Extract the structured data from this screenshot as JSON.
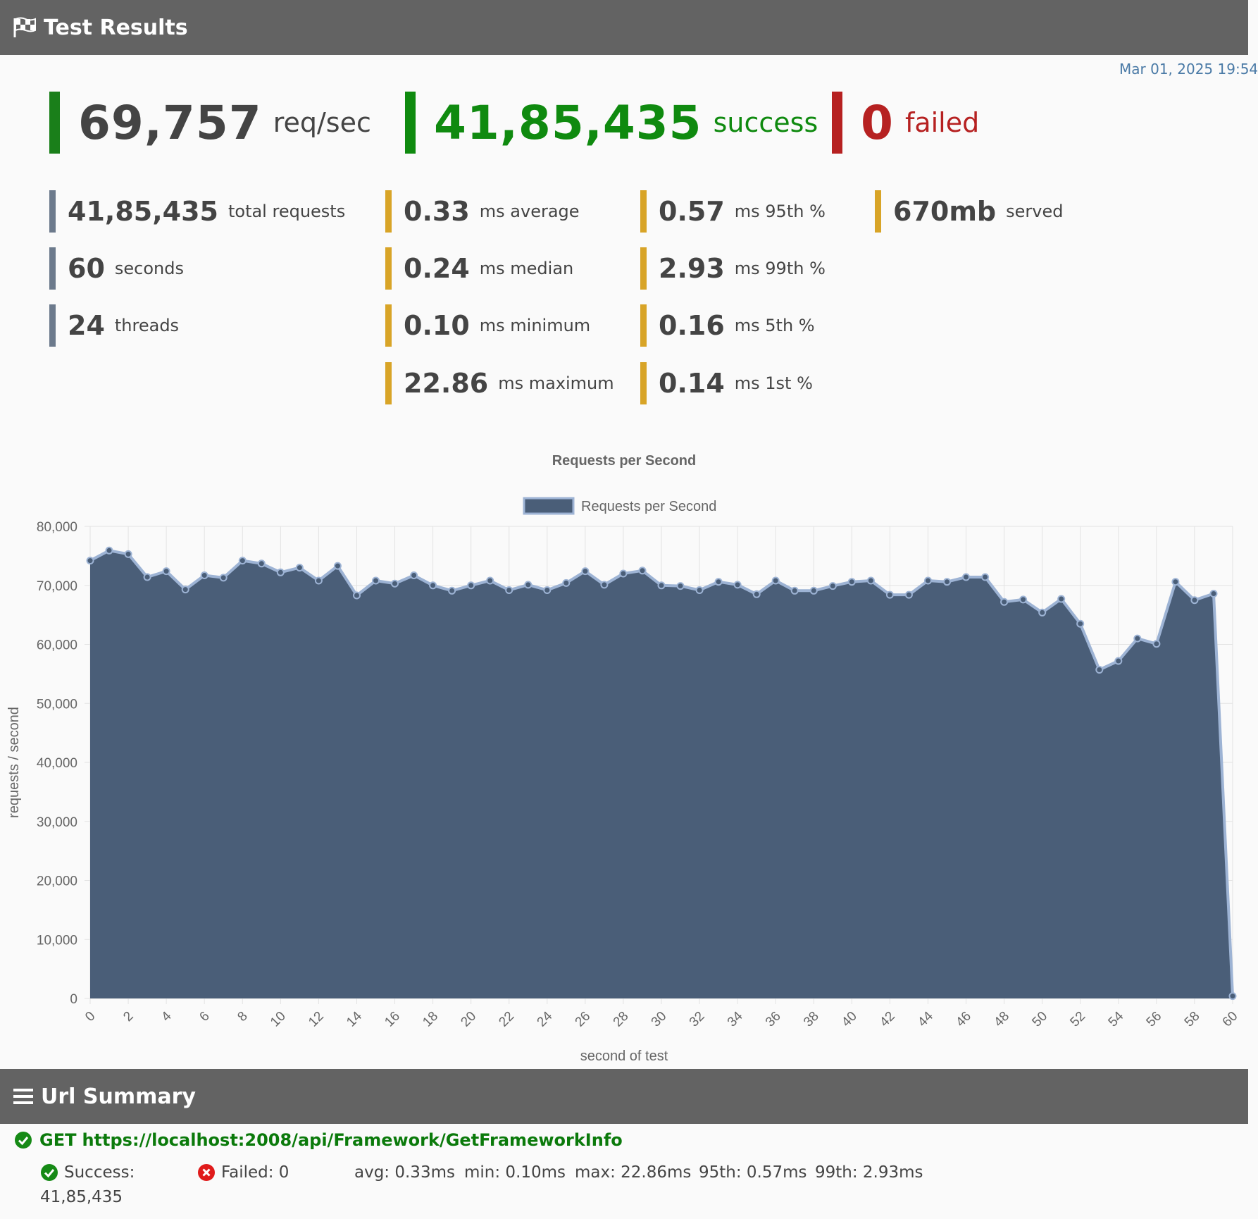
{
  "header": {
    "title": "Test Results",
    "icon": "checkered-flag-icon"
  },
  "timestamp": "Mar 01, 2025 19:54",
  "headline": {
    "rps": {
      "value": "69,757",
      "label": "req/sec",
      "color": "#1a7f1a"
    },
    "success": {
      "value": "41,85,435",
      "label": "success",
      "color": "#0f8a0f"
    },
    "failed": {
      "value": "0",
      "label": "failed",
      "color": "#b62121"
    }
  },
  "stats": {
    "general": [
      {
        "value": "41,85,435",
        "label": "total requests"
      },
      {
        "value": "60",
        "label": "seconds"
      },
      {
        "value": "24",
        "label": "threads"
      }
    ],
    "latency_a": [
      {
        "value": "0.33",
        "label": "ms average"
      },
      {
        "value": "0.24",
        "label": "ms median"
      },
      {
        "value": "0.10",
        "label": "ms minimum"
      },
      {
        "value": "22.86",
        "label": "ms maximum"
      }
    ],
    "latency_b": [
      {
        "value": "0.57",
        "label": "ms 95th %"
      },
      {
        "value": "2.93",
        "label": "ms 99th %"
      },
      {
        "value": "0.16",
        "label": "ms 5th %"
      },
      {
        "value": "0.14",
        "label": "ms 1st %"
      }
    ],
    "served": {
      "value": "670mb",
      "label": "served"
    }
  },
  "chart_data": {
    "type": "area",
    "title": "Requests per Second",
    "xlabel": "second of test",
    "ylabel": "requests / second",
    "ylim": [
      0,
      80000
    ],
    "xlim": [
      0,
      60
    ],
    "yticks": [
      "0",
      "10,000",
      "20,000",
      "30,000",
      "40,000",
      "50,000",
      "60,000",
      "70,000",
      "80,000"
    ],
    "xticks": [
      "0",
      "2",
      "4",
      "6",
      "8",
      "10",
      "12",
      "14",
      "16",
      "18",
      "20",
      "22",
      "24",
      "26",
      "28",
      "30",
      "32",
      "34",
      "36",
      "38",
      "40",
      "42",
      "44",
      "46",
      "48",
      "50",
      "52",
      "54",
      "56",
      "58",
      "60"
    ],
    "grid": true,
    "legend": "top-center",
    "series": [
      {
        "name": "Requests per Second",
        "color": "#4a5e78",
        "line_color": "#9db3d4",
        "x": [
          0,
          1,
          2,
          3,
          4,
          5,
          6,
          7,
          8,
          9,
          10,
          11,
          12,
          13,
          14,
          15,
          16,
          17,
          18,
          19,
          20,
          21,
          22,
          23,
          24,
          25,
          26,
          27,
          28,
          29,
          30,
          31,
          32,
          33,
          34,
          35,
          36,
          37,
          38,
          39,
          40,
          41,
          42,
          43,
          44,
          45,
          46,
          47,
          48,
          49,
          50,
          51,
          52,
          53,
          54,
          55,
          56,
          57,
          58,
          59,
          60
        ],
        "values": [
          74200,
          75900,
          75300,
          71400,
          72400,
          69300,
          71700,
          71300,
          74200,
          73700,
          72200,
          73000,
          70800,
          73300,
          68300,
          70800,
          70300,
          71700,
          70000,
          69100,
          70000,
          70800,
          69200,
          70100,
          69200,
          70400,
          72400,
          70100,
          72000,
          72500,
          70000,
          69900,
          69200,
          70600,
          70100,
          68500,
          70800,
          69100,
          69100,
          69900,
          70600,
          70800,
          68400,
          68400,
          70800,
          70600,
          71400,
          71400,
          67200,
          67600,
          65400,
          67700,
          63500,
          55700,
          57200,
          61000,
          60100,
          70600,
          67500,
          68600,
          400
        ]
      }
    ]
  },
  "url_summary": {
    "title": "Url Summary",
    "icon": "hamburger-menu-icon",
    "method": "GET",
    "url": "https://localhost:2008/api/Framework/GetFrameworkInfo",
    "success_label": "Success:",
    "success_value": "41,85,435",
    "failed_text": "Failed: 0",
    "avg": "avg: 0.33ms",
    "min": "min: 0.10ms",
    "max": "max: 22.86ms",
    "p95": "95th: 0.57ms",
    "p99": "99th: 2.93ms"
  }
}
